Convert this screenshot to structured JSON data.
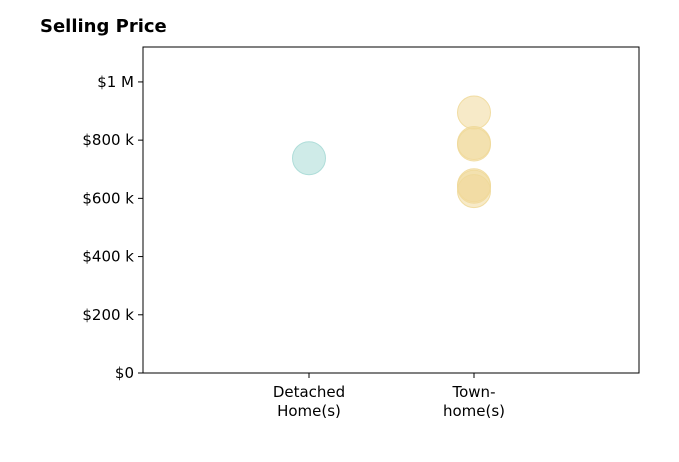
{
  "chart_data": {
    "type": "scatter",
    "title": "Selling Price",
    "categories": [
      "Detached\nHome(s)",
      "Town-\nhome(s)"
    ],
    "ylim": [
      0,
      1120000
    ],
    "yticks": [
      {
        "value": 0,
        "label": "$0"
      },
      {
        "value": 200000,
        "label": "$200 k"
      },
      {
        "value": 400000,
        "label": "$400 k"
      },
      {
        "value": 600000,
        "label": "$600 k"
      },
      {
        "value": 800000,
        "label": "$800 k"
      },
      {
        "value": 1000000,
        "label": "$1 M"
      }
    ],
    "grid": false,
    "series": [
      {
        "category": 0,
        "color": "#a8dad6",
        "values": [
          738000
        ]
      },
      {
        "category": 1,
        "color": "#f0d99a",
        "values": [
          895000,
          790000,
          785000,
          645000,
          640000,
          625000
        ]
      }
    ]
  }
}
